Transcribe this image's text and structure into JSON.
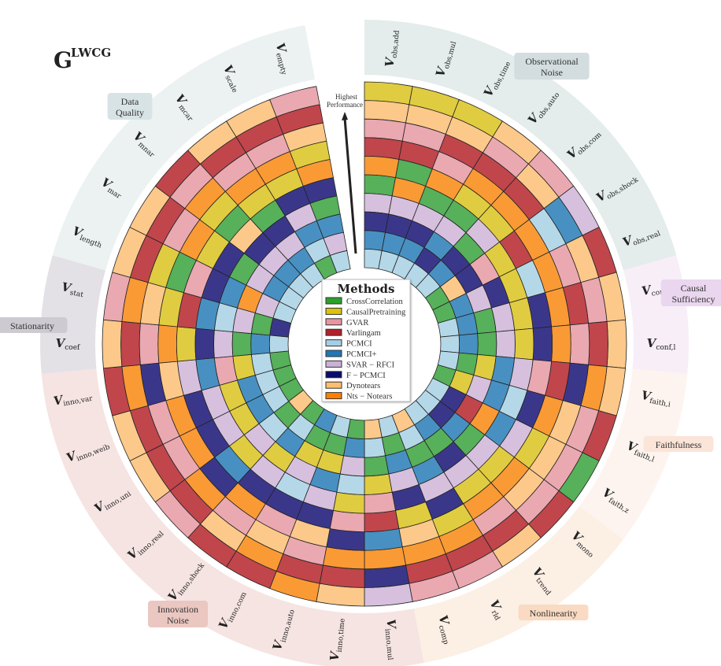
{
  "title": {
    "base": "G",
    "sup": "LWCG"
  },
  "arrow_label": [
    "Highest",
    "Performance"
  ],
  "legend": {
    "title": "Methods",
    "methods": [
      {
        "code": "CC",
        "name": "CrossCorrelation",
        "color": "#57b05a",
        "swatch": "#2ca02c"
      },
      {
        "code": "CP",
        "name": "CausalPretraining",
        "color": "#e0cc40",
        "swatch": "#dcc20a"
      },
      {
        "code": "G",
        "name": "GVAR",
        "color": "#eaa8b0",
        "swatch": "#e8959e"
      },
      {
        "code": "V",
        "name": "Varlingam",
        "color": "#c0464c",
        "swatch": "#b22028"
      },
      {
        "code": "P",
        "name": "PCMCI",
        "color": "#b5d8e8",
        "swatch": "#a6cee3"
      },
      {
        "code": "P+",
        "name": "PCMCI+",
        "color": "#4890c2",
        "swatch": "#1f78b4"
      },
      {
        "code": "S",
        "name": "SVAR − RFCI",
        "color": "#d6c0de",
        "swatch": "#cab2d6"
      },
      {
        "code": "F",
        "name": "F − PCMCI",
        "color": "#3a378a",
        "swatch": "#0b0b6b"
      },
      {
        "code": "D",
        "name": "Dynotears",
        "color": "#fcc98a",
        "swatch": "#fdbf6f"
      },
      {
        "code": "N",
        "name": "Nts − Notears",
        "color": "#fa9a35",
        "swatch": "#ff7f00"
      }
    ]
  },
  "groups": [
    {
      "id": "obs",
      "lines": [
        "Observational",
        "Noise"
      ],
      "band": "#e4ecec",
      "badge": "#d3dddf"
    },
    {
      "id": "conf",
      "lines": [
        "Causal",
        "Sufficiency"
      ],
      "band": "#f7eef8",
      "badge": "#ead6ef"
    },
    {
      "id": "faith",
      "lines": [
        "Faithfulness"
      ],
      "band": "#fdf4ef",
      "badge": "#fbe4d8"
    },
    {
      "id": "nonlin",
      "lines": [
        "Nonlinearity"
      ],
      "band": "#fcefe4",
      "badge": "#fadac2"
    },
    {
      "id": "inno",
      "lines": [
        "Innovation",
        "Noise"
      ],
      "band": "#f5e4e2",
      "badge": "#ebc7c2"
    },
    {
      "id": "stat",
      "lines": [
        "Stationarity"
      ],
      "band": "#e3e1e5",
      "badge": "#cdcbd1"
    },
    {
      "id": "dq",
      "lines": [
        "Data",
        "Quality"
      ],
      "band": "#ecf2f2",
      "badge": "#d8e3e5"
    }
  ],
  "sectors": [
    {
      "sub": "obs,add",
      "group": "obs",
      "ranking": [
        "CP",
        "D",
        "G",
        "V",
        "N",
        "CC",
        "S",
        "F",
        "P+",
        "P"
      ]
    },
    {
      "sub": "obs,mul",
      "group": "obs",
      "ranking": [
        "CP",
        "D",
        "G",
        "V",
        "CC",
        "N",
        "S",
        "F",
        "P+",
        "P"
      ]
    },
    {
      "sub": "obs,time",
      "group": "obs",
      "ranking": [
        "CP",
        "D",
        "V",
        "G",
        "N",
        "CC",
        "S",
        "F",
        "P+",
        "P"
      ]
    },
    {
      "sub": "obs,auto",
      "group": "obs",
      "ranking": [
        "D",
        "G",
        "V",
        "N",
        "CP",
        "CC",
        "S",
        "P+",
        "F",
        "P"
      ]
    },
    {
      "sub": "obs,com",
      "group": "obs",
      "ranking": [
        "G",
        "D",
        "V",
        "N",
        "CP",
        "S",
        "CC",
        "F",
        "P+",
        "P"
      ]
    },
    {
      "sub": "obs,shock",
      "group": "obs",
      "ranking": [
        "S",
        "P+",
        "P",
        "N",
        "V",
        "CP",
        "G",
        "F",
        "D",
        "CC"
      ]
    },
    {
      "sub": "obs,real",
      "group": "obs",
      "ranking": [
        "V",
        "D",
        "G",
        "N",
        "P",
        "CP",
        "F",
        "S",
        "P+",
        "CC"
      ]
    },
    {
      "sub": "conf,i",
      "group": "conf",
      "ranking": [
        "D",
        "G",
        "V",
        "N",
        "F",
        "CP",
        "S",
        "CC",
        "P+",
        "P"
      ]
    },
    {
      "sub": "conf,l",
      "group": "conf",
      "ranking": [
        "D",
        "V",
        "G",
        "N",
        "F",
        "CP",
        "S",
        "CC",
        "P+",
        "P"
      ]
    },
    {
      "sub": "faith,i",
      "group": "faith",
      "ranking": [
        "D",
        "N",
        "F",
        "V",
        "G",
        "S",
        "P+",
        "CP",
        "CC",
        "P"
      ]
    },
    {
      "sub": "faith,l",
      "group": "faith",
      "ranking": [
        "V",
        "G",
        "D",
        "N",
        "F",
        "P",
        "P+",
        "S",
        "CP",
        "CC"
      ]
    },
    {
      "sub": "faith,z",
      "group": "faith",
      "ranking": [
        "CC",
        "G",
        "D",
        "CP",
        "S",
        "P+",
        "N",
        "V",
        "F",
        "P"
      ]
    },
    {
      "sub": "mono",
      "group": "nonlin",
      "ranking": [
        "V",
        "G",
        "D",
        "N",
        "CP",
        "S",
        "CC",
        "P+",
        "F",
        "P"
      ]
    },
    {
      "sub": "trend",
      "group": "nonlin",
      "ranking": [
        "D",
        "V",
        "G",
        "N",
        "CP",
        "S",
        "F",
        "CC",
        "P+",
        "P"
      ]
    },
    {
      "sub": "rld",
      "group": "nonlin",
      "ranking": [
        "G",
        "V",
        "N",
        "CP",
        "F",
        "S",
        "P+",
        "CC",
        "P",
        "D"
      ]
    },
    {
      "sub": "comp",
      "group": "nonlin",
      "ranking": [
        "G",
        "V",
        "N",
        "D",
        "CP",
        "F",
        "S",
        "P+",
        "CC",
        "P"
      ]
    },
    {
      "sub": "inno,mul",
      "group": "inno",
      "ranking": [
        "S",
        "F",
        "N",
        "P+",
        "V",
        "G",
        "CP",
        "CC",
        "P",
        "D"
      ]
    },
    {
      "sub": "inno,time",
      "group": "inno",
      "ranking": [
        "D",
        "V",
        "N",
        "F",
        "G",
        "CP",
        "P",
        "S",
        "P+",
        "CC"
      ]
    },
    {
      "sub": "inno,auto",
      "group": "inno",
      "ranking": [
        "N",
        "V",
        "G",
        "D",
        "F",
        "S",
        "P+",
        "CP",
        "CC",
        "P"
      ]
    },
    {
      "sub": "inno,com",
      "group": "inno",
      "ranking": [
        "V",
        "N",
        "D",
        "G",
        "F",
        "P",
        "S",
        "CP",
        "CC",
        "P+"
      ]
    },
    {
      "sub": "inno,shock",
      "group": "inno",
      "ranking": [
        "V",
        "D",
        "G",
        "N",
        "F",
        "S",
        "CP",
        "P+",
        "P",
        "CC"
      ]
    },
    {
      "sub": "inno,real",
      "group": "inno",
      "ranking": [
        "G",
        "V",
        "N",
        "F",
        "P+",
        "CP",
        "S",
        "P",
        "CC",
        "D"
      ]
    },
    {
      "sub": "inno,uni",
      "group": "inno",
      "ranking": [
        "D",
        "V",
        "G",
        "N",
        "F",
        "S",
        "CP",
        "P+",
        "P",
        "CC"
      ]
    },
    {
      "sub": "inno,weib",
      "group": "inno",
      "ranking": [
        "D",
        "V",
        "G",
        "N",
        "F",
        "S",
        "CP",
        "P+",
        "P",
        "CC"
      ]
    },
    {
      "sub": "inno,var",
      "group": "inno",
      "ranking": [
        "V",
        "N",
        "F",
        "D",
        "S",
        "P+",
        "G",
        "CP",
        "P",
        "CC"
      ]
    },
    {
      "sub": "coef",
      "group": "stat",
      "ranking": [
        "D",
        "V",
        "G",
        "N",
        "CP",
        "F",
        "S",
        "CC",
        "P+",
        "P"
      ]
    },
    {
      "sub": "stat",
      "group": "stat",
      "ranking": [
        "G",
        "N",
        "D",
        "CP",
        "V",
        "P+",
        "P",
        "S",
        "CC",
        "F"
      ]
    },
    {
      "sub": "length",
      "group": "dq",
      "ranking": [
        "D",
        "V",
        "CP",
        "CC",
        "G",
        "F",
        "P+",
        "N",
        "S",
        "P"
      ]
    },
    {
      "sub": "mar",
      "group": "dq",
      "ranking": [
        "D",
        "V",
        "G",
        "N",
        "CP",
        "F",
        "CC",
        "S",
        "P+",
        "P"
      ]
    },
    {
      "sub": "mnar",
      "group": "dq",
      "ranking": [
        "V",
        "G",
        "N",
        "CP",
        "CC",
        "D",
        "F",
        "S",
        "P+",
        "P"
      ]
    },
    {
      "sub": "mcar",
      "group": "dq",
      "ranking": [
        "D",
        "V",
        "G",
        "N",
        "CP",
        "CC",
        "F",
        "S",
        "P+",
        "P"
      ]
    },
    {
      "sub": "scale",
      "group": "dq",
      "ranking": [
        "D",
        "V",
        "G",
        "N",
        "CP",
        "F",
        "S",
        "P+",
        "P",
        "CC"
      ]
    },
    {
      "sub": "empty",
      "group": "dq",
      "ranking": [
        "G",
        "V",
        "D",
        "CP",
        "N",
        "F",
        "CC",
        "P+",
        "S",
        "P"
      ]
    }
  ]
}
